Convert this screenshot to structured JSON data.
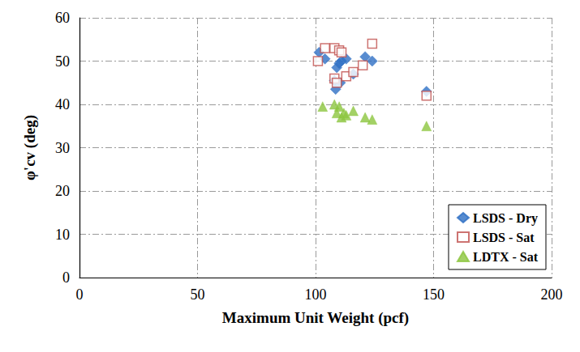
{
  "chart_data": {
    "type": "scatter",
    "x_label": "Maximum Unit Weight (pcf)",
    "y_label": "φ'cv (deg)",
    "xlim": [
      0,
      200
    ],
    "xticks": [
      0,
      50,
      100,
      150,
      200
    ],
    "ylim": [
      0,
      60
    ],
    "yticks": [
      0,
      10,
      20,
      30,
      40,
      50,
      60
    ],
    "grid": true,
    "legend": "lower right",
    "series": [
      {
        "name": "LSDS - Dry",
        "color": "#2e6fc4",
        "marker": "diamond",
        "x": [
          101.5,
          104,
          108,
          108.5,
          109,
          110,
          110.5,
          111,
          113,
          116,
          121,
          124,
          147
        ],
        "values": [
          52,
          50.5,
          45.5,
          43.5,
          48.5,
          49.5,
          45,
          50,
          50.5,
          47,
          51,
          50,
          43
        ]
      },
      {
        "name": "LSDS - Sat",
        "color": "#c0504d",
        "marker": "square-open",
        "x": [
          101,
          104,
          108,
          108,
          110,
          111,
          109,
          113,
          116,
          120,
          124,
          147
        ],
        "values": [
          50,
          53,
          53,
          46,
          52.5,
          52,
          45,
          46.5,
          47.5,
          49,
          54,
          42
        ]
      },
      {
        "name": "LDTX - Sat",
        "color": "#8cc63f",
        "marker": "triangle",
        "x": [
          103,
          108,
          109,
          110,
          111,
          112,
          113,
          116,
          121,
          124,
          147
        ],
        "values": [
          39.5,
          40,
          38,
          39.5,
          37,
          38,
          37.5,
          38.5,
          37,
          36.5,
          35
        ]
      }
    ]
  }
}
